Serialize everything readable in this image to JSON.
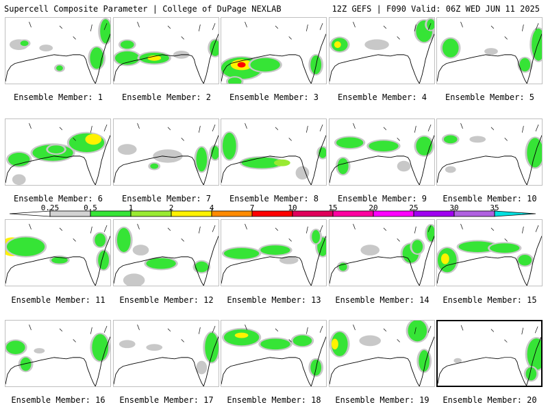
{
  "header": {
    "left": "Supercell Composite Parameter | College of DuPage NEXLAB",
    "right": "12Z GEFS | F090 Valid: 06Z WED JUN 11 2025"
  },
  "colorbar": {
    "labels": [
      "0.25",
      "0.5",
      "1",
      "2",
      "4",
      "7",
      "10",
      "15",
      "20",
      "25",
      "30",
      "35"
    ],
    "colors": [
      "#d2d2d2",
      "#36e436",
      "#99ea32",
      "#fff200",
      "#ff8a00",
      "#ff0000",
      "#e0005a",
      "#ff00a0",
      "#ff00ff",
      "#a000f0",
      "#b060e0",
      "#00e0e0"
    ]
  },
  "members": [
    {
      "label": "Ensemble Member: 1"
    },
    {
      "label": "Ensemble Member: 2"
    },
    {
      "label": "Ensemble Member: 3"
    },
    {
      "label": "Ensemble Member: 4"
    },
    {
      "label": "Ensemble Member: 5"
    },
    {
      "label": "Ensemble Member: 6"
    },
    {
      "label": "Ensemble Member: 7"
    },
    {
      "label": "Ensemble Member: 8"
    },
    {
      "label": "Ensemble Member: 9"
    },
    {
      "label": "Ensemble Member: 10"
    },
    {
      "label": "Ensemble Member: 11"
    },
    {
      "label": "Ensemble Member: 12"
    },
    {
      "label": "Ensemble Member: 13"
    },
    {
      "label": "Ensemble Member: 14"
    },
    {
      "label": "Ensemble Member: 15"
    },
    {
      "label": "Ensemble Member: 16"
    },
    {
      "label": "Ensemble Member: 17"
    },
    {
      "label": "Ensemble Member: 18"
    },
    {
      "label": "Ensemble Member: 19"
    },
    {
      "label": "Ensemble Member: 20"
    }
  ]
}
